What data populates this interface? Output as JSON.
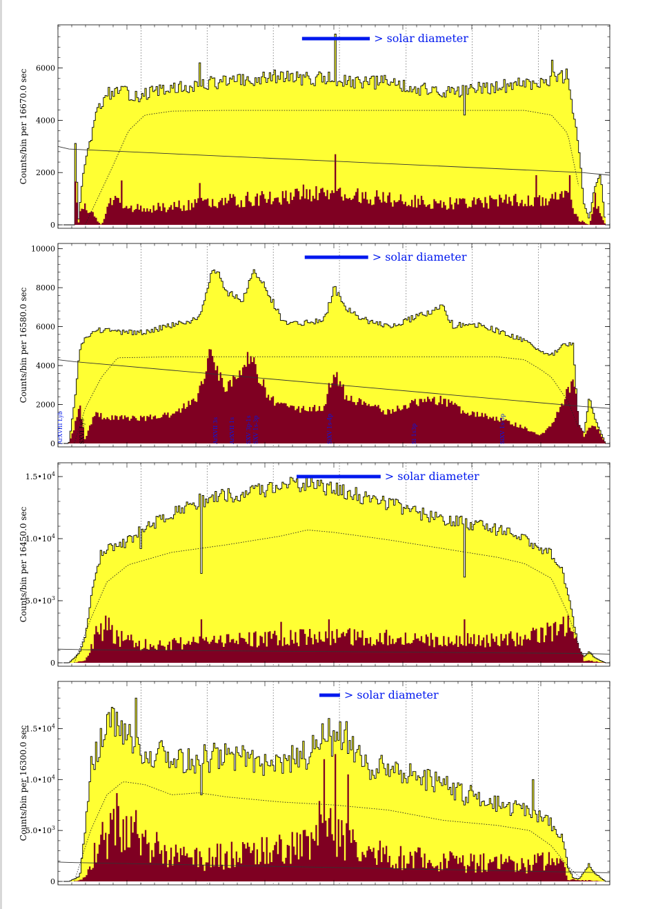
{
  "colors": {
    "upper_fill": "#ffff33",
    "lower_fill": "#7f0022",
    "stair_line": "#000000",
    "solar_bar": "#0018ee",
    "line_label": "#0018ee",
    "axis": "#000000"
  },
  "chart_data": [
    {
      "type": "area",
      "ylabel": "Counts/bin per  16670.0 sec",
      "yticks": [
        "0",
        "2000",
        "4000",
        "6000"
      ],
      "ytick_values": [
        0,
        2000,
        4000,
        6000
      ],
      "ylim": [
        0,
        7600
      ],
      "annotation": "> solar diameter",
      "solar_bar_frac": [
        0.44,
        0.565
      ],
      "vgrid_frac": [
        0.143,
        0.265,
        0.387,
        0.509,
        0.632,
        0.754,
        0.876
      ],
      "upper": {
        "x": [
          0.0,
          0.01,
          0.02,
          0.022,
          0.028,
          0.035,
          0.05,
          0.06,
          0.08,
          0.1,
          0.12,
          0.14,
          0.16,
          0.2,
          0.25,
          0.26,
          0.3,
          0.35,
          0.4,
          0.44,
          0.49,
          0.5,
          0.55,
          0.6,
          0.65,
          0.7,
          0.74,
          0.76,
          0.8,
          0.85,
          0.9,
          0.93,
          0.95,
          0.96,
          0.97,
          0.98,
          0.99,
          1.0
        ],
        "y": [
          0,
          0,
          0,
          3000,
          200,
          1800,
          3200,
          4200,
          5000,
          5150,
          5000,
          4950,
          5050,
          5200,
          5300,
          5400,
          5500,
          5500,
          5700,
          5600,
          5600,
          5500,
          5400,
          5500,
          5200,
          5100,
          5100,
          5200,
          5300,
          5400,
          5600,
          5700,
          3200,
          800,
          200,
          1500,
          2000,
          0
        ]
      },
      "lower": {
        "x": [
          0.0,
          0.01,
          0.02,
          0.022,
          0.028,
          0.035,
          0.07,
          0.09,
          0.12,
          0.2,
          0.3,
          0.35,
          0.4,
          0.45,
          0.5,
          0.55,
          0.6,
          0.7,
          0.8,
          0.9,
          0.93,
          0.95,
          0.97,
          0.98,
          0.99,
          1.0
        ],
        "y": [
          0,
          0,
          0,
          1600,
          100,
          900,
          0,
          1000,
          600,
          700,
          900,
          1000,
          1100,
          1200,
          1200,
          1100,
          1000,
          800,
          900,
          1000,
          1200,
          200,
          0,
          1000,
          400,
          0
        ]
      },
      "spikes": [
        {
          "at": 0.25,
          "y": 6200
        },
        {
          "at": 0.5,
          "y": 7300
        },
        {
          "at": 0.74,
          "y": 4200
        },
        {
          "at": 0.9,
          "y": 6300
        }
      ],
      "lower_spikes": [
        {
          "at": 0.107,
          "y": 1700
        },
        {
          "at": 0.25,
          "y": 1600
        },
        {
          "at": 0.5,
          "y": 2700
        },
        {
          "at": 0.872,
          "y": 1900
        },
        {
          "at": 0.935,
          "y": 1900
        }
      ],
      "model": {
        "x": [
          0.04,
          0.09,
          0.12,
          0.15,
          0.2,
          0.3,
          0.5,
          0.7,
          0.85,
          0.9,
          0.93,
          0.95
        ],
        "y": [
          0,
          2200,
          3600,
          4200,
          4350,
          4380,
          4380,
          4380,
          4380,
          4200,
          3500,
          1500
        ]
      },
      "bkg": {
        "x": [
          0.0,
          0.02,
          0.95,
          1.0
        ],
        "y": [
          3000,
          2900,
          2000,
          1900
        ]
      },
      "line_labels": []
    },
    {
      "type": "area",
      "ylabel": "Counts/bin per  16580.0 sec",
      "yticks": [
        "0",
        "2000",
        "4000",
        "6000",
        "8000",
        "10000"
      ],
      "ytick_values": [
        0,
        2000,
        4000,
        6000,
        8000,
        10000
      ],
      "ylim": [
        0,
        10200
      ],
      "annotation": "> solar diameter",
      "solar_bar_frac": [
        0.445,
        0.562
      ],
      "vgrid_frac": [
        0.143,
        0.265,
        0.387,
        0.509,
        0.632,
        0.754,
        0.876
      ],
      "upper": {
        "x": [
          0.0,
          0.01,
          0.02,
          0.03,
          0.04,
          0.06,
          0.08,
          0.1,
          0.15,
          0.2,
          0.25,
          0.27,
          0.28,
          0.3,
          0.33,
          0.35,
          0.37,
          0.4,
          0.42,
          0.45,
          0.48,
          0.5,
          0.52,
          0.55,
          0.6,
          0.65,
          0.7,
          0.72,
          0.75,
          0.8,
          0.85,
          0.88,
          0.9,
          0.92,
          0.94,
          0.95,
          0.96,
          0.97,
          0.98,
          1.0
        ],
        "y": [
          0,
          0,
          2000,
          4700,
          5500,
          5800,
          5800,
          5700,
          5700,
          6100,
          6400,
          8500,
          9000,
          7800,
          7300,
          9000,
          8200,
          6500,
          6100,
          6200,
          6300,
          8000,
          7000,
          6400,
          6000,
          6500,
          7000,
          6000,
          6200,
          5800,
          5300,
          4700,
          4500,
          5000,
          5200,
          1000,
          500,
          2400,
          1300,
          0
        ]
      },
      "lower": {
        "x": [
          0.0,
          0.01,
          0.02,
          0.03,
          0.04,
          0.05,
          0.06,
          0.08,
          0.1,
          0.15,
          0.2,
          0.22,
          0.25,
          0.27,
          0.28,
          0.3,
          0.32,
          0.34,
          0.36,
          0.38,
          0.4,
          0.45,
          0.48,
          0.5,
          0.52,
          0.55,
          0.6,
          0.65,
          0.7,
          0.75,
          0.8,
          0.85,
          0.88,
          0.9,
          0.92,
          0.94,
          0.95,
          0.96,
          0.97,
          0.98,
          1.0
        ],
        "y": [
          0,
          0,
          800,
          2000,
          200,
          1000,
          1500,
          1300,
          1300,
          1300,
          1500,
          1800,
          2500,
          4600,
          4000,
          2900,
          3500,
          4600,
          3500,
          2300,
          1900,
          1700,
          1900,
          3700,
          2500,
          2100,
          1600,
          2100,
          2200,
          1500,
          1300,
          800,
          400,
          1000,
          2000,
          3300,
          2500,
          300,
          800,
          1000,
          0
        ]
      },
      "spikes": [],
      "lower_spikes": [],
      "model": {
        "x": [
          0.02,
          0.04,
          0.07,
          0.1,
          0.2,
          0.3,
          0.5,
          0.7,
          0.8,
          0.85,
          0.88,
          0.9,
          0.93,
          0.95
        ],
        "y": [
          0,
          1800,
          3400,
          4400,
          4450,
          4450,
          4450,
          4450,
          4450,
          4300,
          3800,
          3400,
          2200,
          800
        ]
      },
      "bkg": {
        "x": [
          0.0,
          0.03,
          0.95,
          1.0
        ],
        "y": [
          4300,
          4200,
          1900,
          1800
        ]
      },
      "line_labels": [
        {
          "text": "ArXVIII Lyb",
          "at": 0.004,
          "color": "#0018ee"
        },
        {
          "text": "SXVI Ly3",
          "at": 0.043,
          "color": "#000000"
        },
        {
          "text": "ArXVII 3s",
          "at": 0.285,
          "color": "#0018ee"
        },
        {
          "text": "ArXVII 1s",
          "at": 0.315,
          "color": "#0018ee"
        },
        {
          "text": "SXV 3p-1s",
          "at": 0.345,
          "color": "#0018ee"
        },
        {
          "text": "SXV 1s-3p",
          "at": 0.358,
          "color": "#0018ee"
        },
        {
          "text": "SiXV 1s-4p",
          "at": 0.492,
          "color": "#0018ee"
        },
        {
          "text": "Si 1s3p",
          "at": 0.645,
          "color": "#0018ee"
        },
        {
          "text": "SiXV 1s-5p",
          "at": 0.805,
          "color": "#0018ee"
        }
      ]
    },
    {
      "type": "area",
      "ylabel": "Counts/bin per  16450.0 sec",
      "yticks": [
        "0",
        "5.0•103",
        "1.0•104",
        "1.5•104"
      ],
      "ytick_values": [
        0,
        5000,
        10000,
        15000
      ],
      "ytick_parts": [
        [
          "0",
          ""
        ],
        [
          "5.0•10",
          "3"
        ],
        [
          "1.0•10",
          "4"
        ],
        [
          "1.5•10",
          "4"
        ]
      ],
      "ylim": [
        0,
        16000
      ],
      "annotation": "> solar diameter",
      "solar_bar_frac": [
        0.43,
        0.585
      ],
      "vgrid_frac": [
        0.143,
        0.265,
        0.387,
        0.509,
        0.632,
        0.754,
        0.876
      ],
      "upper": {
        "x": [
          0.0,
          0.01,
          0.03,
          0.04,
          0.05,
          0.06,
          0.07,
          0.08,
          0.1,
          0.14,
          0.18,
          0.2,
          0.25,
          0.3,
          0.35,
          0.4,
          0.45,
          0.5,
          0.55,
          0.6,
          0.65,
          0.7,
          0.75,
          0.8,
          0.85,
          0.9,
          0.92,
          0.94,
          0.95,
          0.96,
          0.97,
          0.98,
          1.0
        ],
        "y": [
          0,
          0,
          800,
          2000,
          5000,
          7500,
          8800,
          9200,
          9200,
          10500,
          11500,
          12000,
          13000,
          13500,
          13700,
          14300,
          14400,
          14000,
          13400,
          12800,
          12100,
          11600,
          11200,
          10700,
          10000,
          8800,
          7500,
          3600,
          1200,
          500,
          900,
          400,
          0
        ]
      },
      "lower": {
        "x": [
          0.0,
          0.02,
          0.04,
          0.06,
          0.08,
          0.1,
          0.14,
          0.2,
          0.3,
          0.4,
          0.5,
          0.6,
          0.7,
          0.8,
          0.88,
          0.9,
          0.93,
          0.95,
          0.96,
          1.0
        ],
        "y": [
          0,
          0,
          200,
          2200,
          3000,
          2000,
          1500,
          1500,
          1800,
          2000,
          2100,
          2000,
          1800,
          1800,
          2200,
          2600,
          2900,
          1500,
          200,
          0
        ]
      },
      "spikes": [
        {
          "at": 0.255,
          "y": 7200
        },
        {
          "at": 0.74,
          "y": 6900
        },
        {
          "at": 0.865,
          "y": 9200
        },
        {
          "at": 0.142,
          "y": 9200
        }
      ],
      "lower_spikes": [
        {
          "at": 0.255,
          "y": 3500
        },
        {
          "at": 0.4,
          "y": 3300
        },
        {
          "at": 0.49,
          "y": 3500
        },
        {
          "at": 0.74,
          "y": 3500
        }
      ],
      "model": {
        "x": [
          0.02,
          0.05,
          0.08,
          0.12,
          0.2,
          0.3,
          0.4,
          0.45,
          0.5,
          0.6,
          0.7,
          0.8,
          0.85,
          0.9,
          0.93,
          0.95
        ],
        "y": [
          0,
          3500,
          6500,
          7900,
          8900,
          9500,
          10200,
          10700,
          10500,
          9900,
          9200,
          8500,
          8000,
          6800,
          4000,
          1500
        ]
      },
      "bkg": {
        "x": [
          0.0,
          0.05,
          0.95,
          1.0
        ],
        "y": [
          1100,
          1050,
          750,
          700
        ]
      },
      "line_labels": []
    },
    {
      "type": "area",
      "ylabel": "Counts/bin per  16300.0 sec",
      "yticks": [
        "0",
        "5.0•103",
        "1.0•104",
        "1.5•104"
      ],
      "ytick_values": [
        0,
        5000,
        10000,
        15000
      ],
      "ytick_parts": [
        [
          "0",
          ""
        ],
        [
          "5.0•10",
          "3"
        ],
        [
          "1.0•10",
          "4"
        ],
        [
          "1.5•10",
          "4"
        ]
      ],
      "ylim": [
        0,
        19500
      ],
      "annotation": "> solar diameter",
      "solar_bar_frac": [
        0.472,
        0.51
      ],
      "vgrid_frac": [
        0.143,
        0.265,
        0.387,
        0.509,
        0.632,
        0.754,
        0.876
      ],
      "upper": {
        "x": [
          0.0,
          0.01,
          0.03,
          0.04,
          0.05,
          0.06,
          0.08,
          0.1,
          0.12,
          0.14,
          0.15,
          0.18,
          0.2,
          0.25,
          0.3,
          0.35,
          0.4,
          0.45,
          0.48,
          0.5,
          0.52,
          0.55,
          0.6,
          0.65,
          0.7,
          0.75,
          0.8,
          0.85,
          0.88,
          0.9,
          0.92,
          0.93,
          0.94,
          0.95,
          0.97,
          0.98,
          1.0
        ],
        "y": [
          0,
          0,
          500,
          5000,
          11000,
          13000,
          15000,
          16000,
          14500,
          13500,
          12000,
          12500,
          11800,
          12000,
          12400,
          12000,
          11500,
          12500,
          14000,
          13500,
          14500,
          11500,
          11000,
          10500,
          9500,
          8500,
          7500,
          7000,
          6500,
          5500,
          4500,
          1500,
          400,
          200,
          1700,
          800,
          0
        ]
      },
      "lower": {
        "x": [
          0.0,
          0.02,
          0.04,
          0.05,
          0.06,
          0.08,
          0.1,
          0.12,
          0.14,
          0.16,
          0.2,
          0.25,
          0.3,
          0.35,
          0.4,
          0.45,
          0.48,
          0.5,
          0.52,
          0.55,
          0.6,
          0.65,
          0.7,
          0.75,
          0.8,
          0.85,
          0.9,
          0.92,
          0.93,
          1.0
        ],
        "y": [
          0,
          0,
          300,
          1500,
          3000,
          4500,
          6000,
          6500,
          4500,
          3500,
          2500,
          2200,
          2500,
          2800,
          3000,
          3500,
          6000,
          5000,
          4000,
          3000,
          2500,
          2200,
          2000,
          1800,
          1800,
          1700,
          2000,
          1800,
          200,
          0
        ]
      },
      "spikes": [
        {
          "at": 0.135,
          "y": 18000
        },
        {
          "at": 0.255,
          "y": 8500
        },
        {
          "at": 0.49,
          "y": 16000
        },
        {
          "at": 0.74,
          "y": 7500
        },
        {
          "at": 0.866,
          "y": 10000
        }
      ],
      "lower_spikes": [
        {
          "at": 0.1,
          "y": 7400
        },
        {
          "at": 0.135,
          "y": 7000
        },
        {
          "at": 0.48,
          "y": 12000
        },
        {
          "at": 0.5,
          "y": 12500
        },
        {
          "at": 0.525,
          "y": 10500
        }
      ],
      "model": {
        "x": [
          0.02,
          0.05,
          0.08,
          0.11,
          0.15,
          0.2,
          0.25,
          0.3,
          0.4,
          0.5,
          0.6,
          0.7,
          0.8,
          0.86,
          0.9,
          0.93,
          0.95
        ],
        "y": [
          0,
          5000,
          8500,
          9800,
          9500,
          8500,
          8700,
          8300,
          7800,
          7500,
          7000,
          6000,
          5500,
          5000,
          3500,
          1500,
          500
        ]
      },
      "bkg": {
        "x": [
          0.0,
          0.03,
          0.95,
          1.0
        ],
        "y": [
          1900,
          1850,
          900,
          850
        ]
      },
      "line_labels": []
    }
  ]
}
